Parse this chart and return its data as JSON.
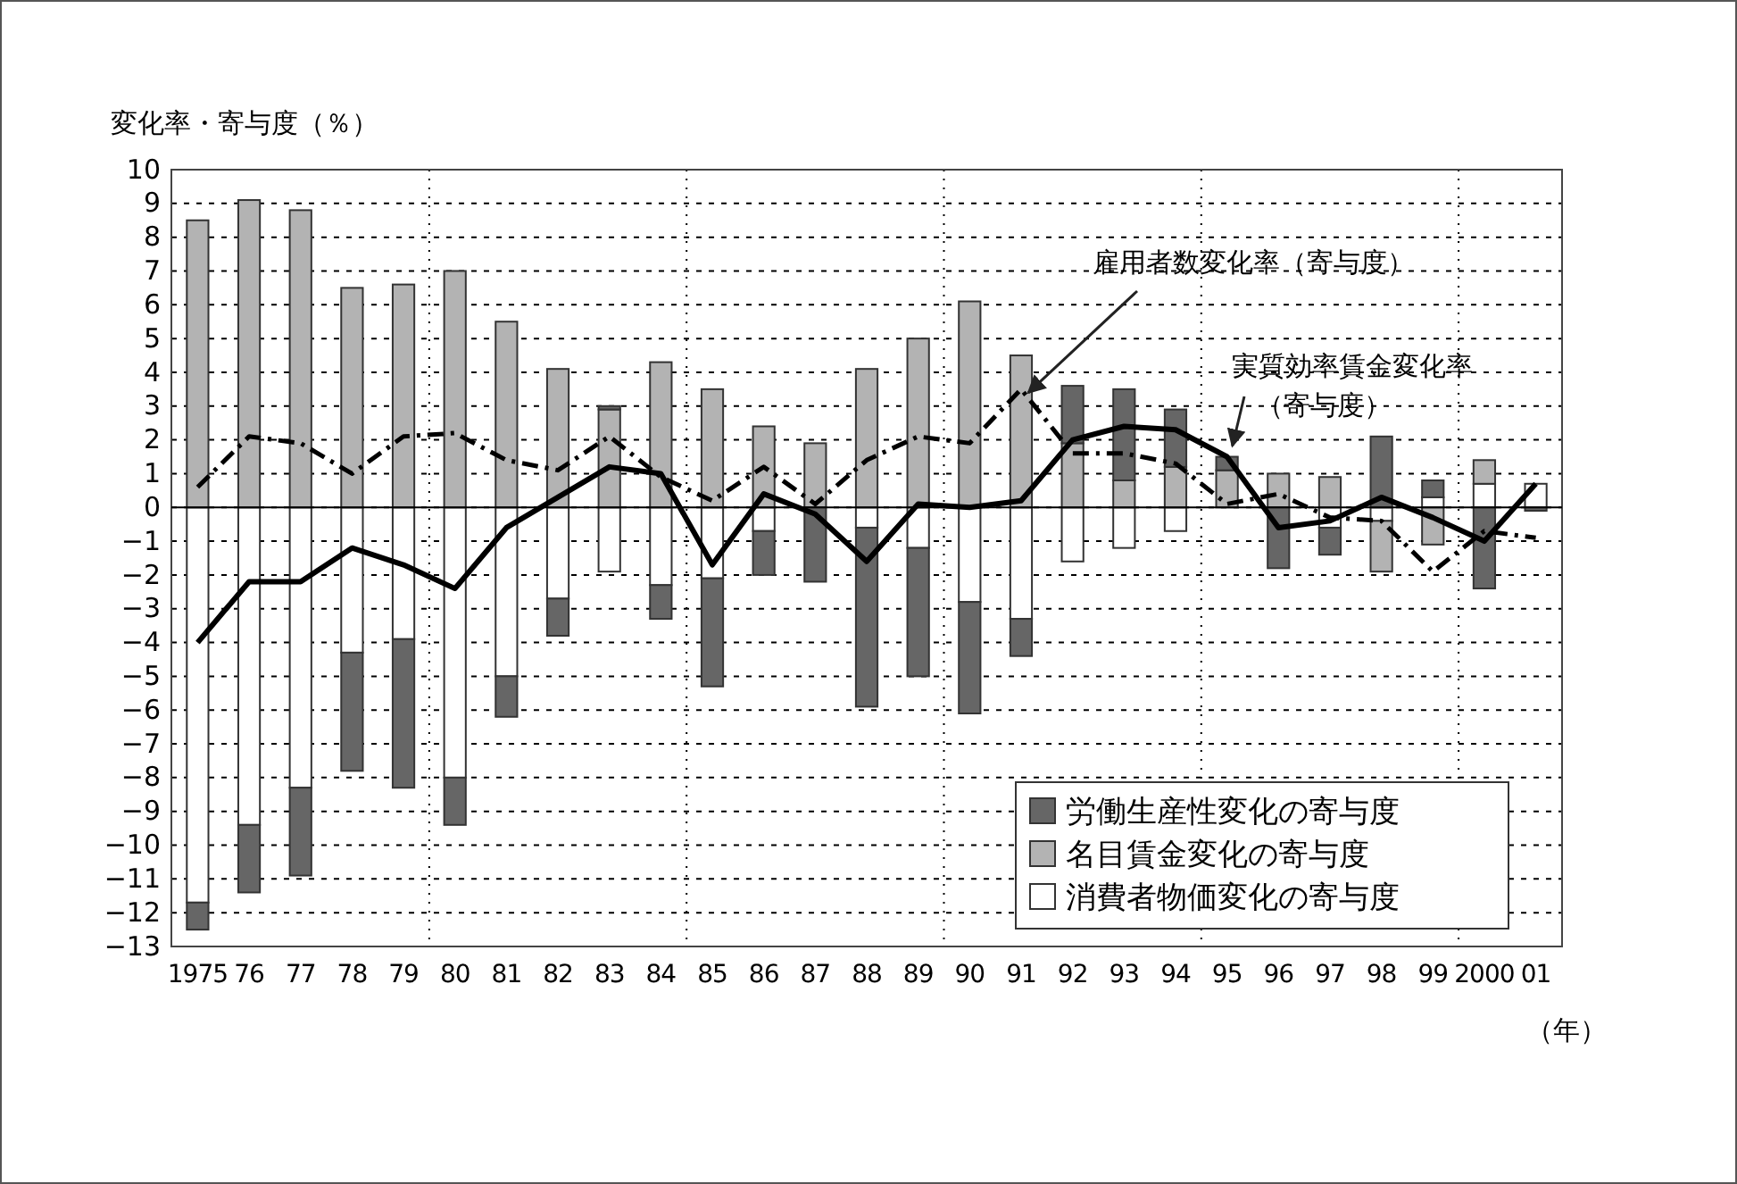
{
  "chart_data": {
    "type": "bar",
    "stacked": true,
    "ylabel": "変化率・寄与度（％）",
    "xlabel": "（年）",
    "categories": [
      "1975",
      "76",
      "77",
      "78",
      "79",
      "80",
      "81",
      "82",
      "83",
      "84",
      "85",
      "86",
      "87",
      "88",
      "89",
      "90",
      "91",
      "92",
      "93",
      "94",
      "95",
      "96",
      "97",
      "98",
      "99",
      "2000",
      "01"
    ],
    "series": [
      {
        "name": "消費者物価変化の寄与度",
        "color": "#ffffff",
        "values": [
          -11.7,
          -9.4,
          -8.3,
          -4.3,
          -3.9,
          -8.0,
          -5.0,
          -2.7,
          -1.9,
          -2.3,
          -2.1,
          -0.7,
          null,
          -0.6,
          -1.2,
          -2.8,
          -3.3,
          -1.6,
          -1.2,
          -0.7,
          0,
          0,
          -0.6,
          -0.4,
          0.3,
          0.7,
          0.7
        ]
      },
      {
        "name": "名目賃金変化の寄与度",
        "color": "#b3b3b3",
        "values": [
          8.5,
          9.1,
          8.8,
          6.5,
          6.6,
          7.0,
          5.5,
          4.1,
          2.9,
          4.3,
          3.5,
          2.4,
          1.9,
          4.1,
          5.0,
          6.1,
          4.5,
          1.9,
          0.8,
          1.2,
          1.1,
          1.0,
          0.9,
          -1.5,
          -1.1,
          0.7,
          0
        ]
      },
      {
        "name": "労働生産性変化の寄与度",
        "color": "#666666",
        "values": [
          -0.8,
          -2.0,
          -2.6,
          -3.5,
          -4.4,
          -1.4,
          -1.2,
          -1.1,
          0.1,
          -1.0,
          -3.2,
          -1.3,
          -2.2,
          -5.3,
          -3.8,
          -3.3,
          -1.1,
          1.7,
          2.7,
          1.7,
          0.4,
          -1.8,
          -0.8,
          2.1,
          0.5,
          -2.4,
          -0.1
        ]
      },
      {
        "name": "雇用者数変化率（寄与度）",
        "type": "line",
        "line_style": "dashed",
        "color": "#000000",
        "values": [
          0.6,
          2.1,
          1.9,
          1.0,
          2.1,
          2.2,
          1.4,
          1.1,
          2.1,
          0.9,
          0.2,
          1.2,
          0.1,
          1.4,
          2.1,
          1.9,
          3.5,
          1.6,
          1.6,
          1.3,
          0.1,
          0.4,
          -0.3,
          -0.4,
          -1.9,
          -0.7,
          -0.9
        ]
      },
      {
        "name": "実質効率賃金変化率（寄与度）",
        "type": "line",
        "line_style": "solid",
        "color": "#000000",
        "values": [
          -4.0,
          -2.2,
          -2.2,
          -1.2,
          -1.7,
          -2.4,
          -0.6,
          0.3,
          1.2,
          1.0,
          -1.7,
          0.4,
          -0.2,
          -1.6,
          0.1,
          0.0,
          0.2,
          2.0,
          2.4,
          2.3,
          1.5,
          -0.6,
          -0.4,
          0.3,
          -0.3,
          -1.0,
          0.7
        ]
      }
    ],
    "ylim": [
      -13,
      10
    ],
    "yticks": [
      10,
      9,
      8,
      7,
      6,
      5,
      4,
      3,
      2,
      1,
      0,
      -1,
      -2,
      -3,
      -4,
      -5,
      -6,
      -7,
      -8,
      -9,
      -10,
      -11,
      -12,
      -13
    ],
    "grid": true,
    "legend": "bottom right"
  }
}
